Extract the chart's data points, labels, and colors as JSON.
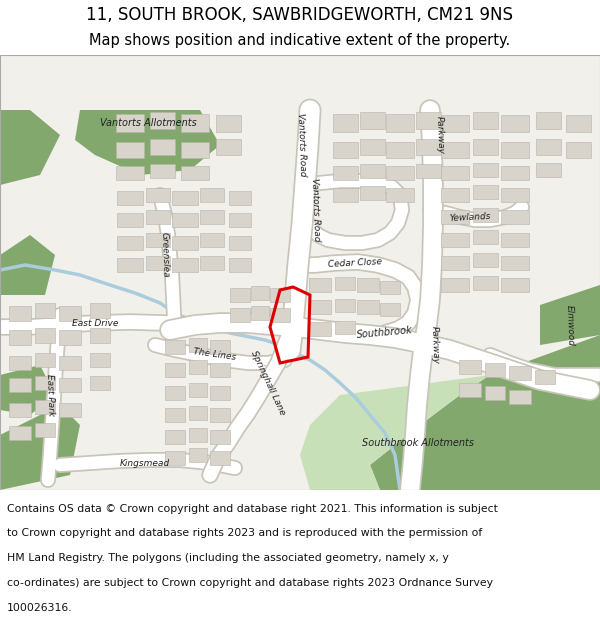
{
  "title_line1": "11, SOUTH BROOK, SAWBRIDGEWORTH, CM21 9NS",
  "title_line2": "Map shows position and indicative extent of the property.",
  "footer_lines": [
    "Contains OS data © Crown copyright and database right 2021. This information is subject",
    "to Crown copyright and database rights 2023 and is reproduced with the permission of",
    "HM Land Registry. The polygons (including the associated geometry, namely x, y",
    "co-ordinates) are subject to Crown copyright and database rights 2023 Ordnance Survey",
    "100026316."
  ],
  "title_fontsize": 12,
  "subtitle_fontsize": 10.5,
  "footer_fontsize": 7.8,
  "bg_color": "#f2f0eb",
  "road_fill_color": "#ffffff",
  "road_edge_color": "#c8c4b8",
  "building_color": "#d8d4cc",
  "building_edge_color": "#b8b4ac",
  "green_dark_color": "#82a86e",
  "green_light_color": "#c8e0b8",
  "water_color": "#aaccdd",
  "red_color": "#dd0000",
  "title_color": "#000000",
  "footer_color": "#111111",
  "white": "#ffffff",
  "figure_width": 6.0,
  "figure_height": 6.25,
  "dpi": 100
}
